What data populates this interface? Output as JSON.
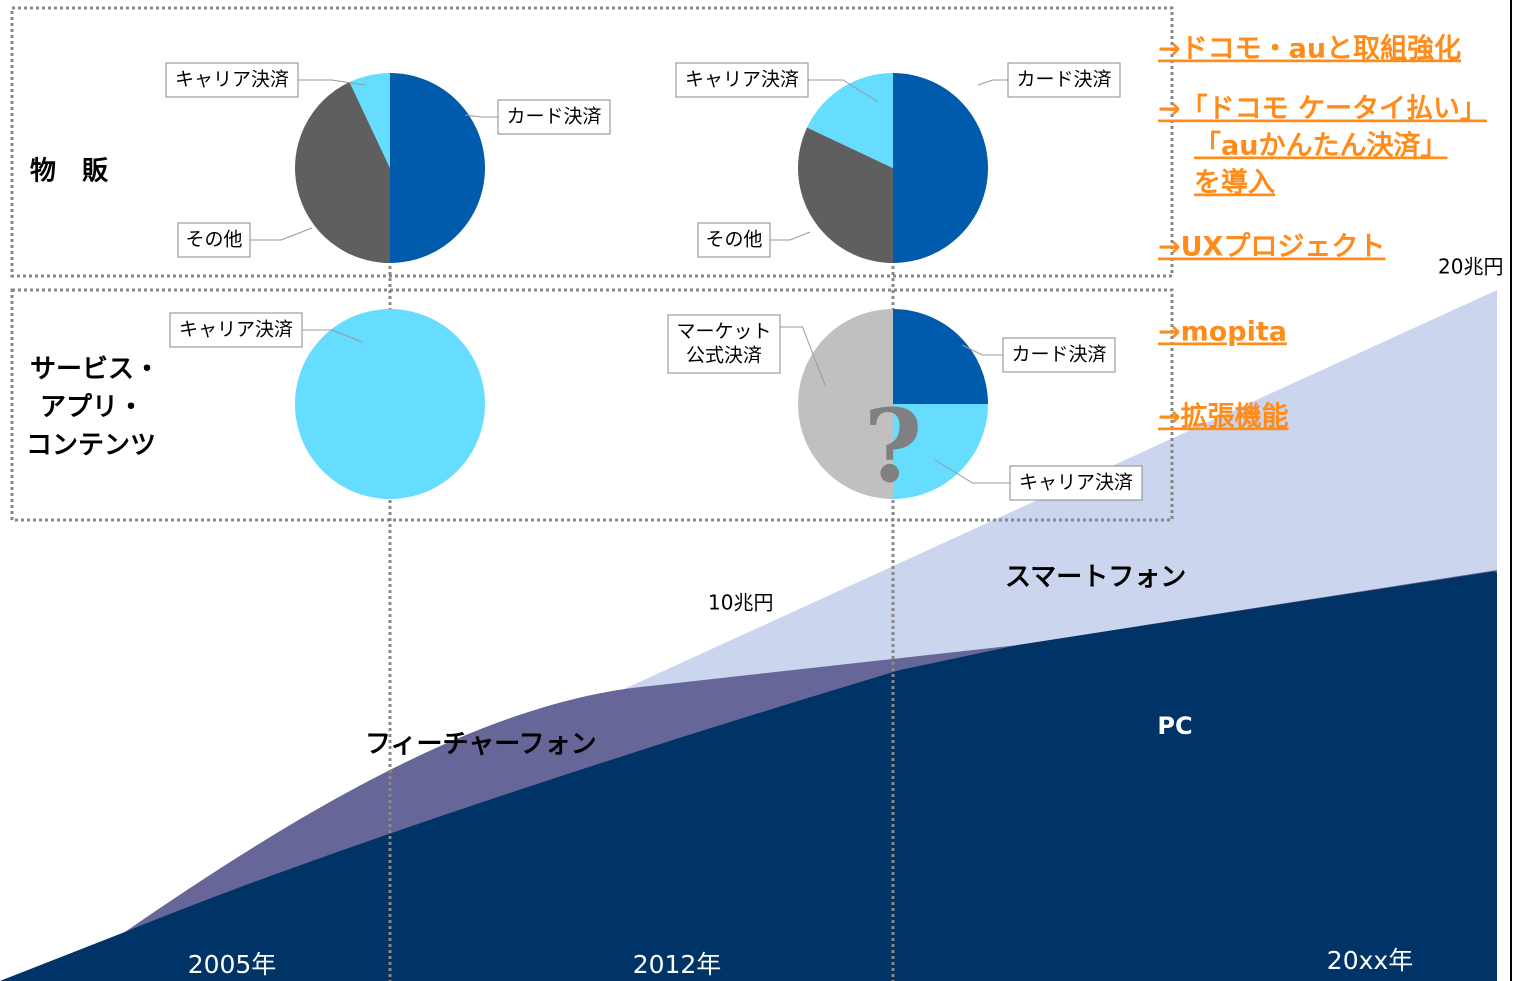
{
  "section_labels": {
    "goods": "物　販",
    "services": [
      "サービス・",
      "アプリ・",
      "コンテンツ"
    ]
  },
  "pies": [
    {
      "slices": [
        {
          "label": [
            "カード決済"
          ],
          "value": 50,
          "color": "#005bac"
        },
        {
          "label": [
            "その他"
          ],
          "value": 43,
          "color": "#5f5f5f"
        },
        {
          "label": [
            "キャリア決済"
          ],
          "value": 7,
          "color": "#66ddff"
        }
      ]
    },
    {
      "slices": [
        {
          "label": [
            "カード決済"
          ],
          "value": 50,
          "color": "#005bac"
        },
        {
          "label": [
            "その他"
          ],
          "value": 32,
          "color": "#5f5f5f"
        },
        {
          "label": [
            "キャリア決済"
          ],
          "value": 18,
          "color": "#66ddff"
        }
      ]
    },
    {
      "slices": [
        {
          "label": [
            "キャリア決済"
          ],
          "value": 100,
          "color": "#66ddff"
        }
      ]
    },
    {
      "slices": [
        {
          "label": [
            "カード決済"
          ],
          "value": 25,
          "color": "#005bac"
        },
        {
          "label": [
            "キャリア決済"
          ],
          "value": 25,
          "color": "#66ddff"
        },
        {
          "label": [
            "マーケット",
            "公式決済"
          ],
          "value": 50,
          "color": "#c0c0c0"
        }
      ]
    }
  ],
  "question": "?",
  "links": [
    [
      "→ドコモ・auと取組強化"
    ],
    [
      "→「ドコモ ケータイ払い」",
      "「auかんたん決済」",
      "を導入"
    ],
    [
      "→UXプロジェクト"
    ],
    [
      "→mopita"
    ],
    [
      "→拡張機能"
    ]
  ],
  "area_labels": {
    "feature_phone": "フィーチャーフォン",
    "smartphone": "スマートフォン",
    "pc": "PC"
  },
  "market_size": [
    "10兆円",
    "20兆円"
  ],
  "years": [
    "2005年",
    "2012年",
    "20xx年"
  ]
}
